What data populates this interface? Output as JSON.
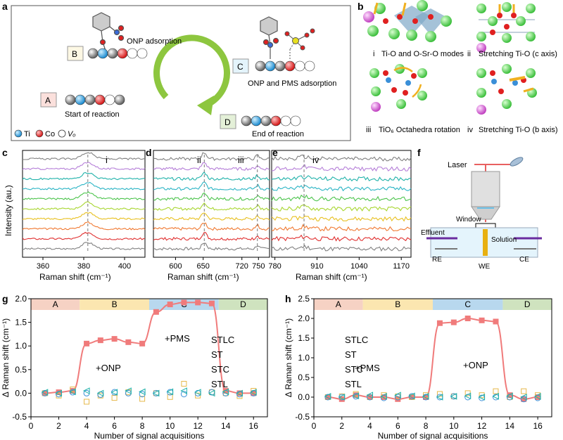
{
  "panel_letters": [
    "a",
    "b",
    "c",
    "d",
    "e",
    "f",
    "g",
    "h"
  ],
  "panel_a": {
    "states": [
      {
        "letter": "B",
        "label": "ONP adsorption"
      },
      {
        "letter": "C",
        "label": "ONP and PMS adsorption"
      },
      {
        "letter": "A",
        "label": "Start of reaction"
      },
      {
        "letter": "D",
        "label": "End of reaction"
      }
    ],
    "legend": [
      "Ti",
      "Co",
      "Vₒ"
    ],
    "colors": {
      "Ti": "#3aa6e0",
      "Co": "#e02020",
      "Vo": "#ffffff",
      "lattice": "#808080",
      "arrow": "#8dc63f"
    }
  },
  "panel_b": {
    "captions": [
      {
        "num": "i",
        "text": "Ti-O and O-Sr-O modes"
      },
      {
        "num": "ii",
        "text": "Stretching Ti-O (c axis)"
      },
      {
        "num": "iii",
        "text": "TiO₆ Octahedra rotation"
      },
      {
        "num": "iv",
        "text": "Stretching Ti-O (b axis)"
      }
    ]
  },
  "raman": {
    "ylabel": "Intensity (au.)",
    "xlabel": "Raman shift (cm⁻¹)",
    "colors": [
      "#808080",
      "#b57ed8",
      "#20b2aa",
      "#2cb5c5",
      "#4cc44c",
      "#a8d630",
      "#e8c020",
      "#f07830",
      "#e03030",
      "#808080"
    ],
    "c": {
      "roman": "i",
      "ticks": [
        "360",
        "380",
        "400"
      ],
      "tick_values": [
        360,
        380,
        400
      ],
      "xlim": [
        350,
        410
      ],
      "peak": 382
    },
    "d": {
      "roman_ii": "ii",
      "roman_iii": "iii",
      "ticks": [
        "600",
        "650",
        "720",
        "750"
      ],
      "tick_values": [
        600,
        650,
        720,
        750
      ],
      "xlim": [
        560,
        770
      ],
      "peak_ii": 652,
      "peak_iii": 748
    },
    "e": {
      "roman": "iv",
      "ticks": [
        "780",
        "910",
        "1040",
        "1170"
      ],
      "tick_values": [
        780,
        910,
        1040,
        1170
      ],
      "xlim": [
        770,
        1200
      ],
      "peak": 870
    }
  },
  "panel_f": {
    "labels": {
      "laser": "Laser",
      "window": "Window",
      "effluent": "Effluent",
      "solution": "Solution",
      "re": "RE",
      "we": "WE",
      "ce": "CE"
    }
  },
  "chart_data": [
    {
      "type": "scatter",
      "panel": "g",
      "xlabel": "Number of signal acquisitions",
      "ylabel": "Δ Raman shift (cm⁻¹)",
      "xlim": [
        0,
        17
      ],
      "ylim": [
        -0.5,
        2.0
      ],
      "xticks": [
        0,
        2,
        4,
        6,
        8,
        10,
        12,
        14,
        16
      ],
      "yticks": [
        -0.5,
        0.0,
        0.5,
        1.0,
        1.5,
        2.0
      ],
      "stages": [
        {
          "label": "A",
          "from": 0,
          "to": 3.5,
          "color": "#f6d2c4"
        },
        {
          "label": "B",
          "from": 3.5,
          "to": 8.5,
          "color": "#fbe6b0"
        },
        {
          "label": "C",
          "from": 8.5,
          "to": 13.5,
          "color": "#b8d8ee"
        },
        {
          "label": "D",
          "from": 13.5,
          "to": 17,
          "color": "#cfe3bf"
        }
      ],
      "annotations": [
        {
          "text": "+ONP"
        },
        {
          "text": "+PMS"
        }
      ],
      "series": [
        {
          "name": "STLC",
          "color": "#f07b7b",
          "x": [
            1,
            2,
            3,
            4,
            5,
            6,
            7,
            8,
            9,
            10,
            11,
            12,
            13,
            14,
            15,
            16
          ],
          "values": [
            0.0,
            0.02,
            0.05,
            1.05,
            1.12,
            1.15,
            1.08,
            1.05,
            1.72,
            1.88,
            1.92,
            1.92,
            1.9,
            0.05,
            0.0,
            0.0
          ]
        },
        {
          "name": "ST",
          "color": "#e6b84a",
          "x": [
            1,
            2,
            3,
            4,
            5,
            6,
            7,
            8,
            9,
            10,
            11,
            12,
            13,
            14,
            15,
            16
          ],
          "values": [
            0.0,
            -0.05,
            0.08,
            -0.18,
            -0.05,
            -0.1,
            0.02,
            -0.12,
            0.0,
            -0.08,
            0.2,
            -0.05,
            0.02,
            0.0,
            -0.06,
            0.05
          ]
        },
        {
          "name": "STC",
          "color": "#3a8fd8",
          "x": [
            1,
            2,
            3,
            4,
            5,
            6,
            7,
            8,
            9,
            10,
            11,
            12,
            13,
            14,
            15,
            16
          ],
          "values": [
            0.0,
            -0.02,
            0.02,
            0.0,
            -0.03,
            0.02,
            0.0,
            -0.02,
            0.0,
            0.02,
            -0.02,
            0.0,
            0.02,
            0.0,
            -0.02,
            0.0
          ]
        },
        {
          "name": "STL",
          "color": "#20b2aa",
          "x": [
            1,
            2,
            3,
            4,
            5,
            6,
            7,
            8,
            9,
            10,
            11,
            12,
            13,
            14,
            15,
            16
          ],
          "values": [
            0.02,
            0.0,
            0.03,
            0.05,
            0.0,
            0.02,
            0.05,
            0.03,
            0.0,
            0.03,
            0.05,
            0.02,
            0.0,
            0.03,
            0.0,
            0.02
          ]
        }
      ]
    },
    {
      "type": "scatter",
      "panel": "h",
      "xlabel": "Number of signal acquisitions",
      "ylabel": "Δ Raman shift (cm⁻¹)",
      "xlim": [
        0,
        17
      ],
      "ylim": [
        -0.5,
        2.5
      ],
      "xticks": [
        0,
        2,
        4,
        6,
        8,
        10,
        12,
        14,
        16
      ],
      "yticks": [
        -0.5,
        0.0,
        0.5,
        1.0,
        1.5,
        2.0,
        2.5
      ],
      "stages": [
        {
          "label": "A",
          "from": 0,
          "to": 3.5,
          "color": "#f6d2c4"
        },
        {
          "label": "B",
          "from": 3.5,
          "to": 8.5,
          "color": "#fbe6b0"
        },
        {
          "label": "C",
          "from": 8.5,
          "to": 13.5,
          "color": "#b8d8ee"
        },
        {
          "label": "D",
          "from": 13.5,
          "to": 17,
          "color": "#cfe3bf"
        }
      ],
      "annotations": [
        {
          "text": "+PMS"
        },
        {
          "text": "+ONP"
        }
      ],
      "series": [
        {
          "name": "STLC",
          "color": "#f07b7b",
          "x": [
            1,
            2,
            3,
            4,
            5,
            6,
            7,
            8,
            9,
            10,
            11,
            12,
            13,
            14,
            15,
            16
          ],
          "values": [
            0.0,
            -0.05,
            0.05,
            0.0,
            0.0,
            -0.05,
            0.0,
            0.0,
            1.88,
            1.9,
            2.0,
            1.95,
            1.92,
            0.05,
            -0.05,
            0.0
          ]
        },
        {
          "name": "ST",
          "color": "#e6b84a",
          "x": [
            1,
            2,
            3,
            4,
            5,
            6,
            7,
            8,
            9,
            10,
            11,
            12,
            13,
            14,
            15,
            16
          ],
          "values": [
            0.0,
            0.02,
            0.08,
            0.0,
            0.05,
            0.02,
            0.0,
            0.05,
            0.08,
            0.02,
            0.1,
            0.05,
            0.15,
            0.0,
            0.15,
            0.05
          ]
        },
        {
          "name": "STC",
          "color": "#3a8fd8",
          "x": [
            1,
            2,
            3,
            4,
            5,
            6,
            7,
            8,
            9,
            10,
            11,
            12,
            13,
            14,
            15,
            16
          ],
          "values": [
            0.0,
            0.0,
            0.02,
            0.0,
            -0.02,
            0.0,
            0.02,
            0.0,
            0.0,
            0.02,
            0.0,
            -0.02,
            0.0,
            0.0,
            -0.05,
            -0.02
          ]
        },
        {
          "name": "STL",
          "color": "#20b2aa",
          "x": [
            1,
            2,
            3,
            4,
            5,
            6,
            7,
            8,
            9,
            10,
            11,
            12,
            13,
            14,
            15,
            16
          ],
          "values": [
            0.02,
            0.0,
            0.03,
            0.05,
            0.02,
            0.05,
            0.03,
            0.02,
            0.0,
            0.02,
            0.03,
            0.0,
            0.02,
            0.03,
            0.0,
            0.02
          ]
        }
      ]
    }
  ]
}
